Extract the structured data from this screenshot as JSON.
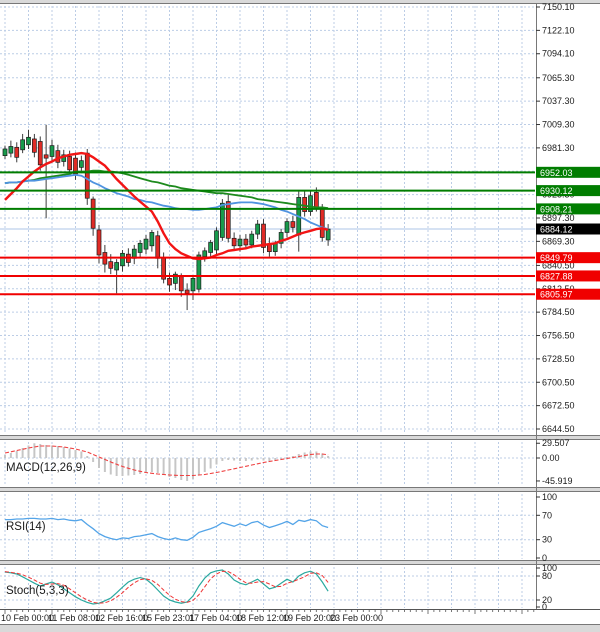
{
  "chart_data": {
    "type": "candlestick",
    "title": "",
    "legend_position": "none",
    "grid": true,
    "main": {
      "price_ticks": [
        "7150.10",
        "7122.10",
        "7094.10",
        "7065.30",
        "7037.30",
        "7009.30",
        "6981.30",
        "6925.30",
        "6897.30",
        "6869.30",
        "6840.50",
        "6812.50",
        "6784.50",
        "6756.50",
        "6728.50",
        "6700.50",
        "6672.50",
        "6644.50"
      ],
      "grid_price_lines": [
        7150.1,
        7122.1,
        7094.1,
        7065.3,
        7037.3,
        7009.3,
        6981.3,
        6953.3,
        6925.3,
        6897.3,
        6869.3,
        6840.5,
        6812.5,
        6784.5,
        6756.5,
        6728.5,
        6700.5,
        6672.5,
        6644.5
      ],
      "y_range": [
        6644.5,
        7150.1
      ],
      "levels": [
        {
          "price": 6952.03,
          "type": "resistance"
        },
        {
          "price": 6930.12,
          "type": "resistance"
        },
        {
          "price": 6908.21,
          "type": "resistance"
        },
        {
          "price": 6884.12,
          "type": "current"
        },
        {
          "price": 6849.79,
          "type": "support"
        },
        {
          "price": 6827.88,
          "type": "support"
        },
        {
          "price": 6805.97,
          "type": "support"
        }
      ],
      "candles": [
        [
          6972,
          6984,
          6968,
          6980
        ],
        [
          6975,
          6990,
          6970,
          6983
        ],
        [
          6982,
          6988,
          6964,
          6970
        ],
        [
          6979,
          6998,
          6975,
          6991
        ],
        [
          6985,
          7003,
          6980,
          6994
        ],
        [
          6992,
          6998,
          6970,
          6976
        ],
        [
          6989,
          6995,
          6954,
          6961
        ],
        [
          6973,
          7009,
          6897,
          6969
        ],
        [
          6971,
          6991,
          6965,
          6984
        ],
        [
          6978,
          6985,
          6957,
          6964
        ],
        [
          6965,
          6979,
          6959,
          6973
        ],
        [
          6971,
          6978,
          6949,
          6955
        ],
        [
          6969,
          6976,
          6943,
          6950
        ],
        [
          6958,
          6972,
          6951,
          6966
        ],
        [
          6975,
          6980,
          6913,
          6921
        ],
        [
          6920,
          6923,
          6876,
          6885
        ],
        [
          6883,
          6889,
          6843,
          6853
        ],
        [
          6856,
          6865,
          6832,
          6842
        ],
        [
          6845,
          6854,
          6830,
          6837
        ],
        [
          6835,
          6848,
          6807,
          6844
        ],
        [
          6840,
          6859,
          6833,
          6855
        ],
        [
          6854,
          6861,
          6839,
          6844
        ],
        [
          6849,
          6865,
          6842,
          6860
        ],
        [
          6856,
          6871,
          6849,
          6867
        ],
        [
          6860,
          6877,
          6854,
          6872
        ],
        [
          6864,
          6883,
          6857,
          6880
        ],
        [
          6876,
          6882,
          6837,
          6849
        ],
        [
          6850,
          6856,
          6819,
          6824
        ],
        [
          6825,
          6832,
          6809,
          6817
        ],
        [
          6819,
          6833,
          6811,
          6830
        ],
        [
          6827,
          6831,
          6803,
          6810
        ],
        [
          6811,
          6819,
          6787,
          6807
        ],
        [
          6810,
          6829,
          6799,
          6825
        ],
        [
          6812,
          6857,
          6808,
          6853
        ],
        [
          6851,
          6862,
          6845,
          6858
        ],
        [
          6856,
          6871,
          6850,
          6868
        ],
        [
          6859,
          6886,
          6853,
          6882
        ],
        [
          6874,
          6920,
          6870,
          6915
        ],
        [
          6917,
          6925,
          6868,
          6873
        ],
        [
          6873,
          6880,
          6859,
          6864
        ],
        [
          6864,
          6877,
          6857,
          6872
        ],
        [
          6872,
          6878,
          6860,
          6865
        ],
        [
          6865,
          6882,
          6861,
          6878
        ],
        [
          6878,
          6895,
          6872,
          6890
        ],
        [
          6890,
          6896,
          6855,
          6862
        ],
        [
          6866,
          6874,
          6851,
          6857
        ],
        [
          6857,
          6870,
          6852,
          6867
        ],
        [
          6867,
          6884,
          6861,
          6880
        ],
        [
          6880,
          6897,
          6874,
          6893
        ],
        [
          6893,
          6900,
          6880,
          6886
        ],
        [
          6877,
          6929,
          6857,
          6922
        ],
        [
          6922,
          6930,
          6899,
          6905
        ],
        [
          6905,
          6929,
          6900,
          6924
        ],
        [
          6928,
          6934,
          6905,
          6908
        ],
        [
          6908,
          6914,
          6869,
          6874
        ],
        [
          6871,
          6890,
          6864,
          6884
        ]
      ],
      "ma_fast": [
        6919,
        6926,
        6933,
        6941,
        6947,
        6953,
        6958,
        6962,
        6965,
        6969,
        6971,
        6973,
        6974,
        6975,
        6974,
        6970,
        6965,
        6960,
        6952,
        6944,
        6937,
        6930,
        6923,
        6917,
        6911,
        6905,
        6893,
        6879,
        6867,
        6860,
        6855,
        6852,
        6849,
        6848,
        6849,
        6850,
        6853,
        6855,
        6858,
        6859,
        6860,
        6861,
        6863,
        6864,
        6865,
        6866,
        6867,
        6870,
        6872,
        6875,
        6878,
        6880,
        6882,
        6884,
        6885,
        6883
      ],
      "ma_mid": [
        6939,
        6940,
        6940,
        6941,
        6942,
        6942,
        6943,
        6944,
        6945,
        6946,
        6947,
        6948,
        6949,
        6948,
        6944,
        6940,
        6937,
        6933,
        6930,
        6927,
        6925,
        6923,
        6920,
        6919,
        6917,
        6916,
        6914,
        6912,
        6911,
        6909,
        6908,
        6908,
        6907,
        6907,
        6908,
        6909,
        6910,
        6913,
        6914,
        6915,
        6916,
        6916,
        6916,
        6915,
        6914,
        6912,
        6910,
        6907,
        6905,
        6902,
        6899,
        6896,
        6892,
        6889,
        6886,
        6884
      ],
      "ma_slow": [
        6939,
        6940,
        6940,
        6941,
        6942,
        6943,
        6945,
        6946,
        6947,
        6948,
        6949,
        6950,
        6953,
        6953,
        6953,
        6954,
        6954,
        6953,
        6953,
        6952,
        6951,
        6949,
        6947,
        6945,
        6943,
        6941,
        6940,
        6938,
        6936,
        6935,
        6933,
        6932,
        6931,
        6930,
        6929,
        6928,
        6927,
        6927,
        6926,
        6925,
        6924,
        6923,
        6922,
        6920,
        6919,
        6918,
        6917,
        6916,
        6915,
        6914,
        6913,
        6912,
        6911,
        6910,
        6910,
        6909
      ]
    },
    "time_axis": [
      {
        "label": "10 Feb 00:00",
        "bar": 0
      },
      {
        "label": "11 Feb 08:00",
        "bar": 8
      },
      {
        "label": "12 Feb 16:00",
        "bar": 16
      },
      {
        "label": "15 Feb 23:01",
        "bar": 24
      },
      {
        "label": "17 Feb 04:00",
        "bar": 32
      },
      {
        "label": "18 Feb 12:00",
        "bar": 40
      },
      {
        "label": "19 Feb 20:00",
        "bar": 48
      },
      {
        "label": "23 Feb 00:00",
        "bar": 56
      }
    ],
    "macd": {
      "label": "MACD(12,26,9)",
      "axis": [
        "29.507",
        "0.00",
        "-45.919"
      ],
      "zero_line": 0,
      "histogram": [
        6,
        10,
        14,
        20,
        25,
        29.5,
        28,
        26,
        25,
        24,
        22,
        19,
        16,
        13,
        4,
        -8,
        -20,
        -28,
        -33,
        -36,
        -36,
        -35,
        -34,
        -32,
        -30,
        -28,
        -30,
        -34,
        -38,
        -40,
        -44,
        -45.9,
        -42,
        -35,
        -28,
        -21,
        -13,
        -6,
        -4,
        -5,
        -6,
        -6,
        -5,
        -3,
        -5,
        -7,
        -5,
        -3,
        2,
        4,
        8,
        11,
        13,
        13,
        9,
        4
      ],
      "signal": [
        10,
        12.5,
        15,
        17.5,
        20,
        22,
        24,
        24,
        24,
        23,
        22,
        20,
        18,
        15,
        12,
        7,
        2,
        -3,
        -8,
        -12.5,
        -17,
        -20.5,
        -24,
        -26.5,
        -29,
        -30.5,
        -32,
        -33,
        -34,
        -34.5,
        -35,
        -35,
        -35,
        -34,
        -33,
        -31,
        -29,
        -26.5,
        -24,
        -21.5,
        -19,
        -16.5,
        -14,
        -11.5,
        -9,
        -7,
        -5,
        -3,
        -1,
        1,
        3,
        5,
        7,
        8,
        8,
        6.5
      ]
    },
    "rsi": {
      "label": "RSI(14)",
      "axis": [
        "100",
        "70",
        "30",
        "0"
      ],
      "level_lines": [
        70,
        30
      ],
      "values": [
        63,
        63,
        64,
        64,
        65,
        65,
        64,
        64,
        65,
        63,
        64,
        62,
        61,
        63,
        55,
        48,
        40,
        35,
        32,
        30,
        33,
        32,
        35,
        36,
        38,
        40,
        35,
        32,
        30,
        33,
        30,
        29,
        34,
        42,
        45,
        48,
        52,
        58,
        55,
        52,
        56,
        53,
        58,
        60,
        54,
        50,
        53,
        56,
        60,
        55,
        62,
        60,
        63,
        61,
        53,
        50
      ]
    },
    "stoch": {
      "label": "Stoch(5,3,3)",
      "axis": [
        "100",
        "80",
        "20",
        "0"
      ],
      "level_lines": [
        80,
        20
      ],
      "k": [
        90,
        88,
        85,
        78,
        70,
        62,
        55,
        60,
        65,
        58,
        48,
        38,
        28,
        20,
        14,
        10,
        12,
        18,
        25,
        38,
        52,
        65,
        72,
        76,
        72,
        60,
        45,
        30,
        20,
        15,
        12,
        15,
        30,
        55,
        75,
        88,
        93,
        95,
        85,
        70,
        62,
        58,
        65,
        72,
        60,
        48,
        52,
        62,
        72,
        65,
        80,
        88,
        92,
        85,
        65,
        42
      ],
      "d": [
        91,
        89,
        87,
        83,
        77,
        70,
        62,
        59,
        60,
        61,
        57,
        48,
        38,
        28,
        20,
        14,
        12,
        13,
        18,
        27,
        38,
        52,
        63,
        71,
        73,
        69,
        59,
        45,
        32,
        22,
        16,
        14,
        19,
        33,
        53,
        73,
        85,
        92,
        91,
        83,
        72,
        63,
        62,
        65,
        66,
        60,
        53,
        54,
        62,
        66,
        72,
        78,
        87,
        88,
        81,
        64
      ]
    }
  },
  "colors": {
    "bull_candle": "#189a4c",
    "bear_candle": "#e02b26",
    "candle_outline": "#1c1c1c",
    "wick": "#3c3c3c",
    "ma_fast": "#f21515",
    "ma_mid": "#4f93e0",
    "ma_slow": "#1d8a1d",
    "resistance": "#007d00",
    "support": "#f00000",
    "current_line": "#c9d9ef",
    "current_label_bg": "#000000",
    "macd_histogram": "#c6c6c6",
    "macd_signal": "#ef4040",
    "rsi_line": "#53a4e8",
    "stoch_k": "#2aa99f",
    "stoch_d": "#ef3535",
    "grid": "#bccde6",
    "axis_text": "#1a1a1a",
    "panel_bg": "#ffffff",
    "separator_fill": "#d9d9d9",
    "separator_edge": "#787878"
  }
}
